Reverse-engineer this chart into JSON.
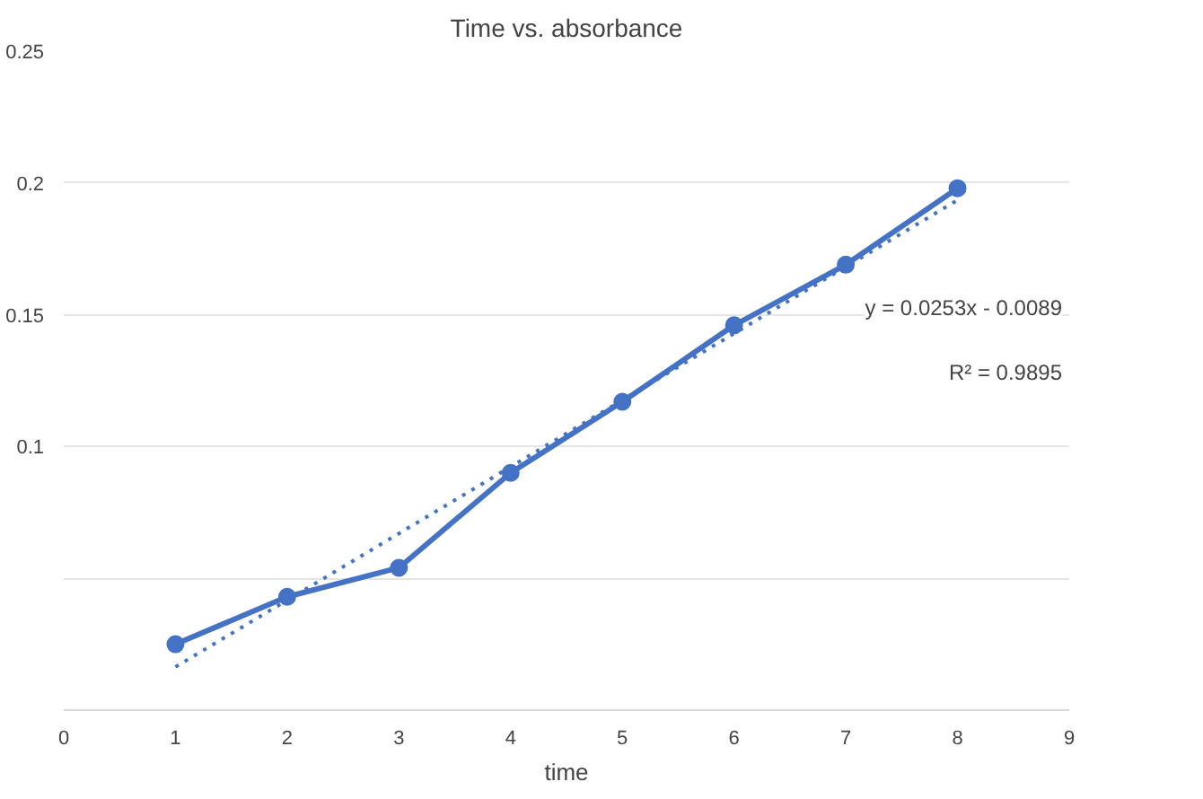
{
  "chart_data": {
    "type": "line",
    "title": "Time vs. absorbance",
    "xlabel": "time",
    "x": [
      1,
      2,
      3,
      4,
      5,
      6,
      7,
      8
    ],
    "series": [
      {
        "color": "#4472c4",
        "values": [
          0.025,
          0.043,
          0.054,
          0.09,
          0.117,
          0.146,
          0.169,
          0.198
        ],
        "marker": "circle",
        "line_style": "solid"
      },
      {
        "type": "line",
        "color": "#4472c4",
        "x": [
          1,
          8
        ],
        "values": [
          0.0164,
          0.1935
        ],
        "marker": "none",
        "line_style": "dotted"
      }
    ],
    "annotations": [
      "y = 0.0253x - 0.0089",
      "R² = 0.9895"
    ],
    "xlim": [
      0,
      9
    ],
    "xticks": [
      0,
      1,
      2,
      3,
      4,
      5,
      6,
      7,
      8,
      9
    ],
    "ylim": [
      0,
      0.25
    ],
    "yticks": [
      {
        "value": 0,
        "label": null
      },
      {
        "value": 0.05,
        "label": null
      },
      {
        "value": 0.1,
        "label": "0.1"
      },
      {
        "value": 0.15,
        "label": "0.15"
      },
      {
        "value": 0.2,
        "label": "0.2"
      },
      {
        "value": 0.25,
        "label": "0.25"
      }
    ],
    "grid": "y"
  }
}
